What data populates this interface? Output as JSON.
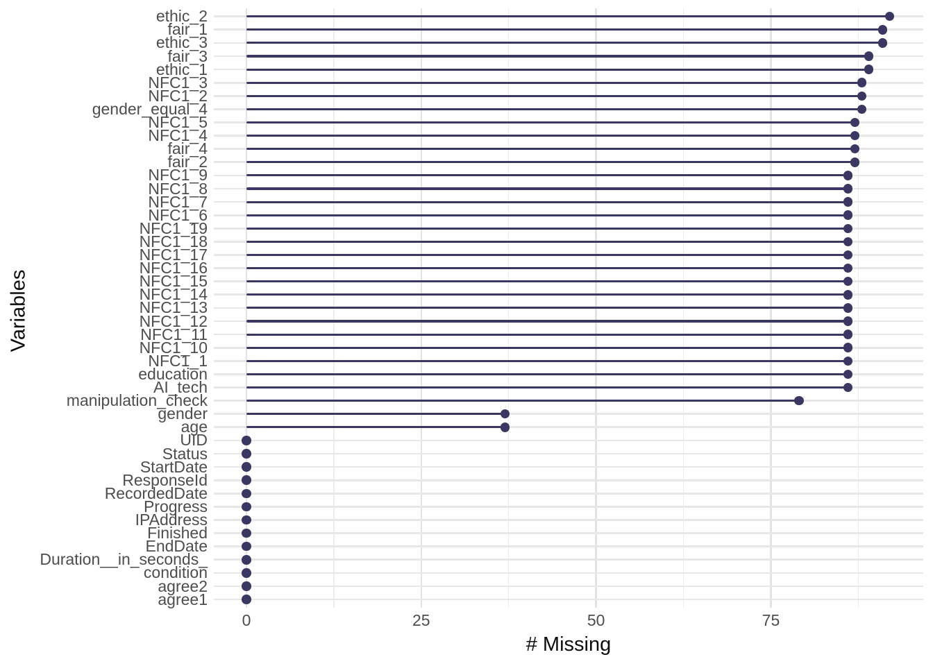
{
  "chart_data": {
    "type": "lollipop",
    "orientation": "horizontal",
    "title": "",
    "xlabel": "# Missing",
    "ylabel": "Variables",
    "x_ticks": [
      0,
      25,
      50,
      75
    ],
    "x_minor_ticks": [
      12.5,
      37.5,
      62.5,
      87.5
    ],
    "xlim": [
      -4.7,
      96.9
    ],
    "grid": "major-and-minor-vertical, major-horizontal",
    "legend": "none",
    "point_color": "#3a3862",
    "grid_major_color": "#e7e7e7",
    "grid_minor_color": "#ededed",
    "axis_text_color": "#4d4d4d",
    "axis_title_color": "#0d0d0d",
    "background_color": "#ffffff",
    "categories": [
      "ethic_2",
      "fair_1",
      "ethic_3",
      "fair_3",
      "ethic_1",
      "NFC1_3",
      "NFC1_2",
      "gender_equal_4",
      "NFC1_5",
      "NFC1_4",
      "fair_4",
      "fair_2",
      "NFC1_9",
      "NFC1_8",
      "NFC1_7",
      "NFC1_6",
      "NFC1_19",
      "NFC1_18",
      "NFC1_17",
      "NFC1_16",
      "NFC1_15",
      "NFC1_14",
      "NFC1_13",
      "NFC1_12",
      "NFC1_11",
      "NFC1_10",
      "NFC1_1",
      "education",
      "AI_tech",
      "manipulation_check",
      "gender",
      "age",
      "UID",
      "Status",
      "StartDate",
      "ResponseId",
      "RecordedDate",
      "Progress",
      "IPAddress",
      "Finished",
      "EndDate",
      "Duration__in_seconds_",
      "condition",
      "agree2",
      "agree1"
    ],
    "values": [
      92,
      91,
      91,
      89,
      89,
      88,
      88,
      88,
      87,
      87,
      87,
      87,
      86,
      86,
      86,
      86,
      86,
      86,
      86,
      86,
      86,
      86,
      86,
      86,
      86,
      86,
      86,
      86,
      86,
      79,
      37,
      37,
      0,
      0,
      0,
      0,
      0,
      0,
      0,
      0,
      0,
      0,
      0,
      0,
      0
    ]
  }
}
